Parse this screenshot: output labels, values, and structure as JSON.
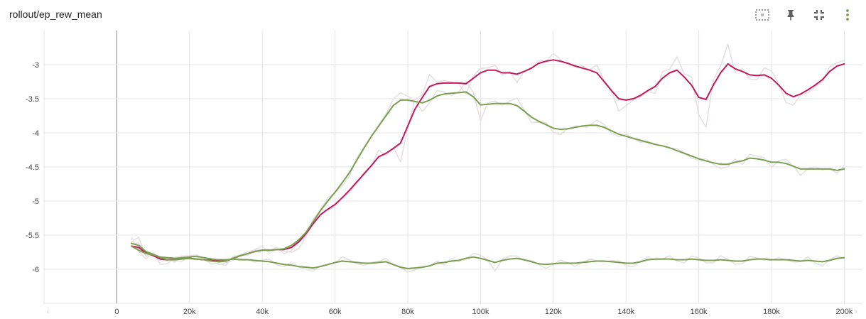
{
  "header": {
    "title": "rollout/ep_rew_mean"
  },
  "toolbar": {
    "icons": [
      "fit-domain-icon",
      "pin-icon",
      "collapse-icon",
      "more-vert-icon"
    ]
  },
  "colors": {
    "magenta": "#c2185b",
    "green": "#7a9f51",
    "faded": "#e6e0e3",
    "grid": "#e4e4e4",
    "zero_line": "#8a8a8a"
  },
  "chart_data": {
    "type": "line",
    "title": "rollout/ep_rew_mean",
    "xlabel": "",
    "ylabel": "",
    "xlim": [
      -20000,
      205000
    ],
    "ylim": [
      -6.5,
      -2.5
    ],
    "x_ticks": [
      0,
      20000,
      40000,
      60000,
      80000,
      100000,
      120000,
      140000,
      160000,
      180000,
      200000
    ],
    "x_tick_labels": [
      "0",
      "20k",
      "40k",
      "60k",
      "80k",
      "100k",
      "120k",
      "140k",
      "160k",
      "180k",
      "200k"
    ],
    "y_ticks": [
      -3,
      -3.5,
      -4,
      -4.5,
      -5,
      -5.5,
      -6
    ],
    "y_tick_labels": [
      "-3",
      "-3.5",
      "-4",
      "-4.5",
      "-5",
      "-5.5",
      "-6"
    ],
    "grid": true,
    "legend": "none",
    "series": [
      {
        "color": "#c2185b",
        "x": [
          4000,
          6000,
          8000,
          10000,
          12000,
          14000,
          16000,
          18000,
          20000,
          22000,
          24000,
          26000,
          28000,
          30000,
          32000,
          34000,
          36000,
          38000,
          40000,
          42000,
          44000,
          46000,
          48000,
          50000,
          52000,
          54000,
          56000,
          58000,
          60000,
          62000,
          64000,
          66000,
          68000,
          70000,
          72000,
          74000,
          76000,
          78000,
          80000,
          82000,
          84000,
          86000,
          88000,
          90000,
          92000,
          94000,
          96000,
          98000,
          100000,
          102000,
          104000,
          106000,
          108000,
          110000,
          112000,
          114000,
          116000,
          118000,
          120000,
          122000,
          124000,
          126000,
          128000,
          130000,
          132000,
          134000,
          136000,
          138000,
          140000,
          142000,
          144000,
          146000,
          148000,
          150000,
          152000,
          154000,
          156000,
          158000,
          160000,
          162000,
          164000,
          166000,
          168000,
          170000,
          172000,
          174000,
          176000,
          178000,
          180000,
          182000,
          184000,
          186000,
          188000,
          190000,
          192000,
          194000,
          196000,
          198000,
          200000
        ],
        "y": [
          -5.66,
          -5.68,
          -5.76,
          -5.8,
          -5.85,
          -5.86,
          -5.85,
          -5.84,
          -5.84,
          -5.85,
          -5.86,
          -5.87,
          -5.88,
          -5.88,
          -5.84,
          -5.8,
          -5.77,
          -5.74,
          -5.72,
          -5.72,
          -5.71,
          -5.71,
          -5.68,
          -5.6,
          -5.48,
          -5.33,
          -5.2,
          -5.12,
          -5.05,
          -4.95,
          -4.84,
          -4.72,
          -4.6,
          -4.48,
          -4.35,
          -4.3,
          -4.23,
          -4.15,
          -3.9,
          -3.65,
          -3.48,
          -3.32,
          -3.28,
          -3.27,
          -3.27,
          -3.27,
          -3.28,
          -3.2,
          -3.12,
          -3.08,
          -3.08,
          -3.12,
          -3.12,
          -3.14,
          -3.1,
          -3.05,
          -2.98,
          -2.95,
          -2.93,
          -2.95,
          -2.98,
          -3.02,
          -3.05,
          -3.08,
          -3.12,
          -3.25,
          -3.38,
          -3.5,
          -3.52,
          -3.5,
          -3.45,
          -3.38,
          -3.32,
          -3.2,
          -3.12,
          -3.08,
          -3.18,
          -3.3,
          -3.48,
          -3.51,
          -3.3,
          -3.12,
          -2.99,
          -3.06,
          -3.1,
          -3.15,
          -3.16,
          -3.15,
          -3.2,
          -3.3,
          -3.42,
          -3.47,
          -3.43,
          -3.37,
          -3.3,
          -3.22,
          -3.1,
          -3.02,
          -2.99
        ]
      },
      {
        "color": "#7a9f51",
        "x": [
          4000,
          6000,
          8000,
          10000,
          12000,
          14000,
          16000,
          18000,
          20000,
          22000,
          24000,
          26000,
          28000,
          30000,
          32000,
          34000,
          36000,
          38000,
          40000,
          42000,
          44000,
          46000,
          48000,
          50000,
          52000,
          54000,
          56000,
          58000,
          60000,
          62000,
          64000,
          66000,
          68000,
          70000,
          72000,
          74000,
          76000,
          78000,
          80000,
          82000,
          84000,
          86000,
          88000,
          90000,
          92000,
          94000,
          96000,
          98000,
          100000,
          102000,
          104000,
          106000,
          108000,
          110000,
          112000,
          114000,
          116000,
          118000,
          120000,
          122000,
          124000,
          126000,
          128000,
          130000,
          132000,
          134000,
          136000,
          138000,
          140000,
          142000,
          144000,
          146000,
          148000,
          150000,
          152000,
          154000,
          156000,
          158000,
          160000,
          162000,
          164000,
          166000,
          168000,
          170000,
          172000,
          174000,
          176000,
          178000,
          180000,
          182000,
          184000,
          186000,
          188000,
          190000,
          192000,
          194000,
          196000,
          198000,
          200000
        ],
        "y": [
          -5.62,
          -5.65,
          -5.74,
          -5.78,
          -5.83,
          -5.86,
          -5.86,
          -5.85,
          -5.84,
          -5.85,
          -5.86,
          -5.88,
          -5.89,
          -5.88,
          -5.84,
          -5.8,
          -5.77,
          -5.74,
          -5.72,
          -5.72,
          -5.71,
          -5.7,
          -5.65,
          -5.57,
          -5.46,
          -5.3,
          -5.14,
          -5.0,
          -4.87,
          -4.73,
          -4.58,
          -4.4,
          -4.22,
          -4.05,
          -3.9,
          -3.75,
          -3.6,
          -3.52,
          -3.52,
          -3.54,
          -3.56,
          -3.52,
          -3.46,
          -3.43,
          -3.42,
          -3.41,
          -3.4,
          -3.47,
          -3.59,
          -3.58,
          -3.57,
          -3.57,
          -3.57,
          -3.6,
          -3.68,
          -3.77,
          -3.83,
          -3.88,
          -3.93,
          -3.95,
          -3.94,
          -3.92,
          -3.9,
          -3.89,
          -3.89,
          -3.92,
          -3.97,
          -4.02,
          -4.05,
          -4.08,
          -4.11,
          -4.14,
          -4.17,
          -4.19,
          -4.22,
          -4.26,
          -4.3,
          -4.34,
          -4.38,
          -4.41,
          -4.44,
          -4.46,
          -4.46,
          -4.43,
          -4.41,
          -4.37,
          -4.38,
          -4.4,
          -4.43,
          -4.43,
          -4.45,
          -4.49,
          -4.53,
          -4.53,
          -4.53,
          -4.53,
          -4.53,
          -4.55,
          -4.53
        ]
      },
      {
        "color": "#7a9f51",
        "x": [
          4000,
          6000,
          8000,
          10000,
          12000,
          14000,
          16000,
          18000,
          20000,
          22000,
          24000,
          26000,
          28000,
          30000,
          32000,
          34000,
          36000,
          38000,
          40000,
          42000,
          44000,
          46000,
          48000,
          50000,
          52000,
          54000,
          56000,
          58000,
          60000,
          62000,
          64000,
          66000,
          68000,
          70000,
          72000,
          74000,
          76000,
          78000,
          80000,
          82000,
          84000,
          86000,
          88000,
          90000,
          92000,
          94000,
          96000,
          98000,
          100000,
          102000,
          104000,
          106000,
          108000,
          110000,
          112000,
          114000,
          116000,
          118000,
          120000,
          122000,
          124000,
          126000,
          128000,
          130000,
          132000,
          134000,
          136000,
          138000,
          140000,
          142000,
          144000,
          146000,
          148000,
          150000,
          152000,
          154000,
          156000,
          158000,
          160000,
          162000,
          164000,
          166000,
          168000,
          170000,
          172000,
          174000,
          176000,
          178000,
          180000,
          182000,
          184000,
          186000,
          188000,
          190000,
          192000,
          194000,
          196000,
          198000,
          200000
        ],
        "y": [
          -5.66,
          -5.72,
          -5.77,
          -5.79,
          -5.82,
          -5.83,
          -5.84,
          -5.83,
          -5.82,
          -5.81,
          -5.83,
          -5.85,
          -5.86,
          -5.86,
          -5.85,
          -5.86,
          -5.86,
          -5.87,
          -5.88,
          -5.89,
          -5.91,
          -5.93,
          -5.94,
          -5.96,
          -5.97,
          -5.98,
          -5.96,
          -5.93,
          -5.9,
          -5.88,
          -5.89,
          -5.9,
          -5.91,
          -5.91,
          -5.9,
          -5.89,
          -5.93,
          -5.97,
          -5.99,
          -5.98,
          -5.97,
          -5.95,
          -5.91,
          -5.9,
          -5.88,
          -5.87,
          -5.84,
          -5.82,
          -5.84,
          -5.87,
          -5.9,
          -5.87,
          -5.85,
          -5.84,
          -5.86,
          -5.89,
          -5.92,
          -5.93,
          -5.92,
          -5.91,
          -5.91,
          -5.91,
          -5.9,
          -5.89,
          -5.88,
          -5.88,
          -5.89,
          -5.9,
          -5.91,
          -5.91,
          -5.89,
          -5.86,
          -5.85,
          -5.85,
          -5.85,
          -5.86,
          -5.86,
          -5.85,
          -5.86,
          -5.87,
          -5.87,
          -5.86,
          -5.87,
          -5.88,
          -5.88,
          -5.86,
          -5.85,
          -5.85,
          -5.86,
          -5.86,
          -5.86,
          -5.87,
          -5.88,
          -5.87,
          -5.88,
          -5.89,
          -5.87,
          -5.84,
          -5.83
        ]
      }
    ]
  }
}
